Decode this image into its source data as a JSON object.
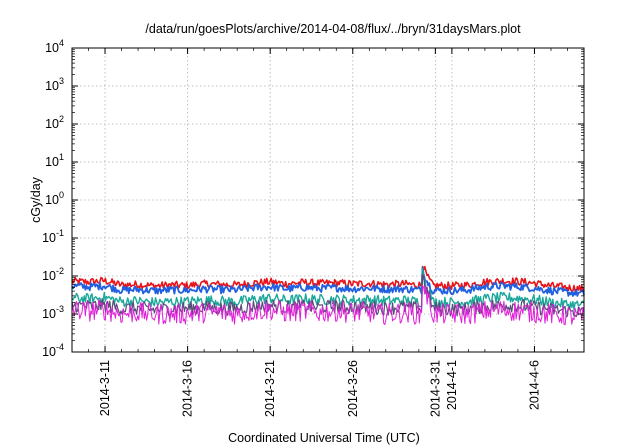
{
  "chart_data": {
    "type": "line",
    "title": "/data/run/goesPlots/archive/2014-04-08/flux/../bryn/31daysMars.plot",
    "xlabel": "Coordinated Universal Time (UTC)",
    "ylabel": "cGy/day",
    "yscale": "log",
    "ylim": [
      0.0001,
      10000
    ],
    "y_ticks": [
      {
        "value": 0.0001,
        "base": "10",
        "exp": "-4"
      },
      {
        "value": 0.001,
        "base": "10",
        "exp": "-3"
      },
      {
        "value": 0.01,
        "base": "10",
        "exp": "-2"
      },
      {
        "value": 0.1,
        "base": "10",
        "exp": "-1"
      },
      {
        "value": 1,
        "base": "10",
        "exp": "0"
      },
      {
        "value": 10,
        "base": "10",
        "exp": "1"
      },
      {
        "value": 100,
        "base": "10",
        "exp": "2"
      },
      {
        "value": 1000,
        "base": "10",
        "exp": "3"
      },
      {
        "value": 10000,
        "base": "10",
        "exp": "4"
      }
    ],
    "xlim": [
      "2014-03-09",
      "2014-04-09"
    ],
    "x_ticks": [
      {
        "date": "2014-03-11",
        "label": "2014-3-11"
      },
      {
        "date": "2014-03-16",
        "label": "2014-3-16"
      },
      {
        "date": "2014-03-21",
        "label": "2014-3-21"
      },
      {
        "date": "2014-03-26",
        "label": "2014-3-26"
      },
      {
        "date": "2014-03-31",
        "label": "2014-3-31"
      },
      {
        "date": "2014-04-01",
        "label": "2014-4-1"
      },
      {
        "date": "2014-04-06",
        "label": "2014-4-6"
      }
    ],
    "grid": true,
    "legend": "none",
    "x": [
      "2014-03-09",
      "2014-03-10",
      "2014-03-11",
      "2014-03-12",
      "2014-03-13",
      "2014-03-14",
      "2014-03-15",
      "2014-03-16",
      "2014-03-17",
      "2014-03-18",
      "2014-03-19",
      "2014-03-20",
      "2014-03-21",
      "2014-03-22",
      "2014-03-23",
      "2014-03-24",
      "2014-03-25",
      "2014-03-26",
      "2014-03-27",
      "2014-03-28",
      "2014-03-29",
      "2014-03-30",
      "2014-03-31",
      "2014-04-01",
      "2014-04-02",
      "2014-04-03",
      "2014-04-04",
      "2014-04-05",
      "2014-04-06",
      "2014-04-07",
      "2014-04-08",
      "2014-04-09"
    ],
    "series": [
      {
        "color": "#e8141a",
        "values": [
          0.0072,
          0.007,
          0.0075,
          0.0058,
          0.006,
          0.0055,
          0.0058,
          0.0056,
          0.0062,
          0.006,
          0.0058,
          0.0066,
          0.007,
          0.0062,
          0.0068,
          0.0064,
          0.0066,
          0.0062,
          0.0064,
          0.006,
          0.0062,
          0.0058,
          0.0056,
          0.0055,
          0.0058,
          0.007,
          0.0074,
          0.0072,
          0.0065,
          0.0055,
          0.005,
          0.0045
        ]
      },
      {
        "color": "#1f5fe0",
        "values": [
          0.0055,
          0.0052,
          0.0056,
          0.0042,
          0.0044,
          0.0041,
          0.0043,
          0.0042,
          0.0046,
          0.0044,
          0.0043,
          0.0049,
          0.0052,
          0.0046,
          0.005,
          0.0047,
          0.0049,
          0.0046,
          0.0048,
          0.0045,
          0.0046,
          0.0043,
          0.0042,
          0.0041,
          0.0043,
          0.0052,
          0.0055,
          0.0053,
          0.0048,
          0.0041,
          0.0037,
          0.0034
        ]
      },
      {
        "color": "#1aa89a",
        "values": [
          0.0026,
          0.0025,
          0.0027,
          0.0021,
          0.0022,
          0.002,
          0.0021,
          0.0021,
          0.0023,
          0.0022,
          0.0021,
          0.0024,
          0.0026,
          0.0023,
          0.0025,
          0.0024,
          0.0024,
          0.0023,
          0.0024,
          0.0022,
          0.0023,
          0.0021,
          0.0021,
          0.002,
          0.0021,
          0.0025,
          0.0027,
          0.0026,
          0.0024,
          0.002,
          0.0018,
          0.0017
        ]
      },
      {
        "color": "#5a4a7a",
        "values": [
          0.0017,
          0.0016,
          0.0017,
          0.0014,
          0.0014,
          0.0013,
          0.0014,
          0.0014,
          0.0015,
          0.0014,
          0.0014,
          0.0016,
          0.0017,
          0.0015,
          0.0016,
          0.0015,
          0.0016,
          0.0015,
          0.0015,
          0.0014,
          0.0015,
          0.0014,
          0.0014,
          0.0013,
          0.0014,
          0.0016,
          0.0017,
          0.0017,
          0.0015,
          0.0013,
          0.0012,
          0.0011
        ]
      },
      {
        "color": "#e020d8",
        "values": [
          0.0013,
          0.0012,
          0.0013,
          0.001,
          0.0011,
          0.001,
          0.001,
          0.001,
          0.0011,
          0.0011,
          0.001,
          0.0012,
          0.0013,
          0.0011,
          0.0012,
          0.0011,
          0.0012,
          0.0011,
          0.0011,
          0.001,
          0.0011,
          0.001,
          0.001,
          0.001,
          0.001,
          0.0012,
          0.0013,
          0.0012,
          0.0011,
          0.001,
          0.0009,
          0.0008
        ]
      }
    ],
    "annotations": [
      {
        "date": "2014-03-30",
        "peak_value": 0.025
      }
    ]
  }
}
